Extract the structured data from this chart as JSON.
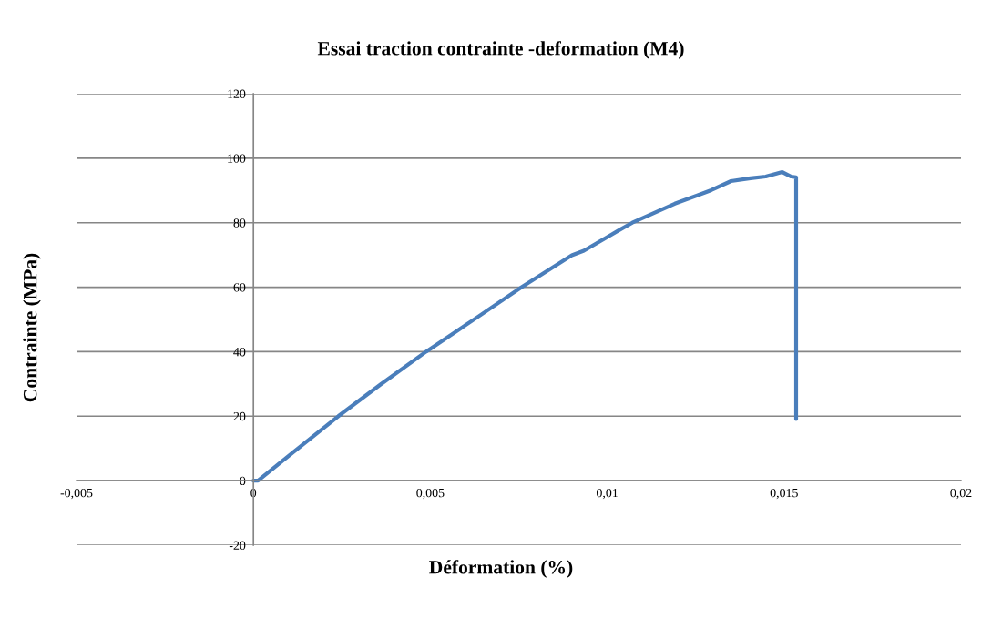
{
  "chart_data": {
    "type": "line",
    "title": "Essai traction contrainte -deformation (M4)",
    "xlabel": "Déformation (%)",
    "ylabel": "Contrainte (MPa)",
    "x": [
      0,
      0.00013,
      0.00111,
      0.0024,
      0.0036,
      0.00488,
      0.00625,
      0.00758,
      0.009,
      0.00934,
      0.01037,
      0.01071,
      0.01191,
      0.01294,
      0.0135,
      0.01405,
      0.01448,
      0.01495,
      0.0152,
      0.01534,
      0.01534
    ],
    "series": [
      {
        "color": "#4a7ebb",
        "values": [
          0,
          0,
          8.7,
          20,
          29.9,
          40,
          50.1,
          60,
          69.9,
          71.3,
          77.9,
          80,
          85.9,
          90.1,
          92.9,
          93.8,
          94.3,
          95.7,
          94.3,
          94.1,
          19.1
        ]
      }
    ],
    "xlim": [
      -0.005,
      0.02
    ],
    "ylim": [
      -20,
      120
    ],
    "xticks": [
      {
        "value": -0.005,
        "label": "-0,005"
      },
      0,
      {
        "value": 0.005,
        "label": "0,005"
      },
      {
        "value": 0.01,
        "label": "0,01"
      },
      {
        "value": 0.015,
        "label": "0,015"
      },
      {
        "value": 0.02,
        "label": "0,02"
      }
    ],
    "yticks": [
      -20,
      0,
      20,
      40,
      60,
      80,
      100,
      120
    ],
    "grid": "y"
  }
}
